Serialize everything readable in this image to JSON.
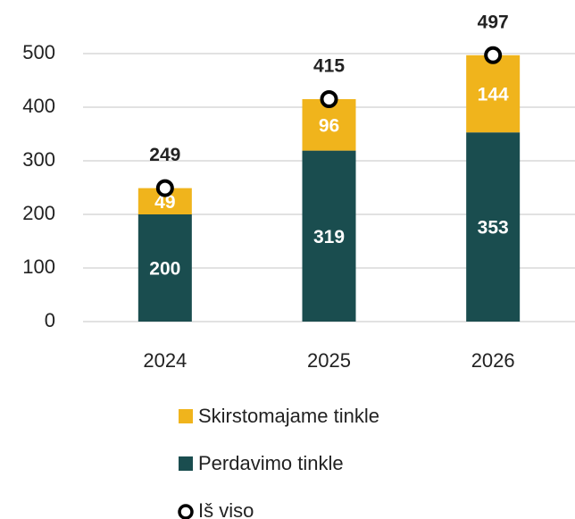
{
  "chart_data": {
    "type": "bar",
    "stacked": true,
    "categories": [
      "2024",
      "2025",
      "2026"
    ],
    "series": [
      {
        "name": "Perdavimo tinkle",
        "color": "#1a4d4f",
        "values": [
          200,
          319,
          353
        ]
      },
      {
        "name": "Skirstomajame tinkle",
        "color": "#f0b41c",
        "values": [
          49,
          96,
          144
        ]
      },
      {
        "name": "Iš viso",
        "type": "marker",
        "color": "#000000",
        "values": [
          249,
          415,
          497
        ]
      }
    ],
    "ylim": [
      0,
      500
    ],
    "yticks": [
      0,
      100,
      200,
      300,
      400,
      500
    ],
    "grid": true,
    "legend": "bottom"
  }
}
